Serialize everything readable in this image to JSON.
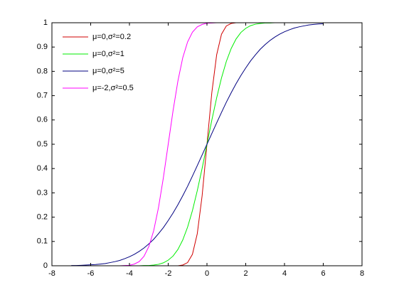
{
  "chart_data": {
    "type": "line",
    "x": [
      -7,
      -6.75,
      -6.5,
      -6.25,
      -6,
      -5.75,
      -5.5,
      -5.25,
      -5,
      -4.75,
      -4.5,
      -4.25,
      -4,
      -3.75,
      -3.5,
      -3.25,
      -3,
      -2.75,
      -2.5,
      -2.25,
      -2,
      -1.75,
      -1.5,
      -1.25,
      -1,
      -0.75,
      -0.5,
      -0.25,
      0,
      0.25,
      0.5,
      0.75,
      1,
      1.25,
      1.5,
      1.75,
      2,
      2.25,
      2.5,
      2.75,
      3,
      3.25,
      3.5,
      3.75,
      4,
      4.25,
      4.5,
      4.75,
      5,
      5.25,
      5.5,
      5.75,
      6
    ],
    "series": [
      {
        "name": "μ=0,σ²=0.2",
        "color": "#d00000",
        "values": [
          0,
          0,
          0,
          0,
          0,
          0,
          0,
          0,
          0,
          0,
          0,
          0,
          0,
          0,
          0,
          0,
          0,
          0,
          0,
          0,
          0,
          0,
          0,
          0.003,
          0.013,
          0.047,
          0.132,
          0.288,
          0.5,
          0.712,
          0.868,
          0.953,
          0.987,
          0.997,
          1,
          1,
          1,
          1,
          1,
          1,
          1,
          1,
          1,
          1,
          1,
          1,
          1,
          1,
          1,
          1,
          1,
          1,
          1
        ]
      },
      {
        "name": "μ=0,σ²=1",
        "color": "#00ee00",
        "values": [
          0,
          0,
          0,
          0,
          0,
          0,
          0,
          0,
          0,
          0,
          0,
          0,
          0,
          0,
          0,
          0.001,
          0.001,
          0.003,
          0.006,
          0.012,
          0.023,
          0.04,
          0.067,
          0.106,
          0.159,
          0.227,
          0.309,
          0.401,
          0.5,
          0.599,
          0.691,
          0.773,
          0.841,
          0.894,
          0.933,
          0.96,
          0.977,
          0.988,
          0.994,
          0.997,
          0.999,
          0.999,
          1,
          1,
          1,
          1,
          1,
          1,
          1,
          1,
          1,
          1,
          1
        ]
      },
      {
        "name": "μ=0,σ²=5",
        "color": "#000080",
        "values": [
          0.001,
          0.001,
          0.002,
          0.003,
          0.004,
          0.005,
          0.007,
          0.009,
          0.013,
          0.017,
          0.022,
          0.029,
          0.037,
          0.047,
          0.059,
          0.073,
          0.09,
          0.109,
          0.132,
          0.157,
          0.186,
          0.217,
          0.251,
          0.288,
          0.327,
          0.369,
          0.412,
          0.456,
          0.5,
          0.544,
          0.588,
          0.631,
          0.673,
          0.712,
          0.749,
          0.783,
          0.814,
          0.843,
          0.868,
          0.891,
          0.91,
          0.927,
          0.941,
          0.953,
          0.963,
          0.971,
          0.978,
          0.983,
          0.987,
          0.991,
          0.993,
          0.995,
          0.996
        ]
      },
      {
        "name": "μ=-2,σ²=0.5",
        "color": "#ff00ff",
        "values": [
          0,
          0,
          0,
          0,
          0,
          0,
          0,
          0,
          0,
          0,
          0,
          0.001,
          0.002,
          0.007,
          0.017,
          0.039,
          0.079,
          0.144,
          0.24,
          0.362,
          0.5,
          0.638,
          0.76,
          0.856,
          0.921,
          0.961,
          0.983,
          0.993,
          0.998,
          0.999,
          1,
          1,
          1,
          1,
          1,
          1,
          1,
          1,
          1,
          1,
          1,
          1,
          1,
          1,
          1,
          1,
          1,
          1,
          1,
          1,
          1,
          1,
          1
        ]
      }
    ],
    "xlim": [
      -8,
      8
    ],
    "xticks": [
      -8,
      -6,
      -4,
      -2,
      0,
      2,
      4,
      6,
      8
    ],
    "ylim": [
      0,
      1
    ],
    "yticks": [
      0,
      0.1,
      0.2,
      0.3,
      0.4,
      0.5,
      0.6,
      0.7,
      0.8,
      0.9,
      1
    ],
    "grid": false,
    "legend": "upper left"
  }
}
